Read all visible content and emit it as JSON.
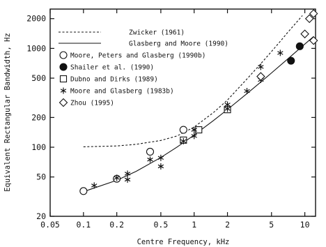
{
  "chart_data": {
    "type": "scatter",
    "title": "",
    "xlabel": "Centre Frequency, kHz",
    "ylabel": "Equivalent Rectangular Bandwidth, Hz",
    "x_scale": "log",
    "y_scale": "log",
    "xlim": [
      0.05,
      12.5
    ],
    "ylim": [
      20,
      2500
    ],
    "x_ticks": [
      {
        "value": 0.05,
        "label": "0.05"
      },
      {
        "value": 0.1,
        "label": "0.1"
      },
      {
        "value": 0.2,
        "label": "0.2"
      },
      {
        "value": 0.5,
        "label": "0.5"
      },
      {
        "value": 1,
        "label": "1"
      },
      {
        "value": 2,
        "label": "2"
      },
      {
        "value": 5,
        "label": "5"
      },
      {
        "value": 10,
        "label": "10"
      }
    ],
    "y_ticks": [
      {
        "value": 20,
        "label": "20"
      },
      {
        "value": 50,
        "label": "50"
      },
      {
        "value": 100,
        "label": "100"
      },
      {
        "value": 200,
        "label": "200"
      },
      {
        "value": 500,
        "label": "500"
      },
      {
        "value": 1000,
        "label": "1000"
      },
      {
        "value": 2000,
        "label": "2000"
      }
    ],
    "grid": false,
    "legend_position": "top-left",
    "lines": [
      {
        "name": "Zwicker (1961)",
        "style": "dashed",
        "x": [
          0.1,
          0.2,
          0.3,
          0.5,
          0.7,
          1.0,
          1.5,
          2.0,
          3.0,
          4.0,
          5.0,
          6.0,
          7.0,
          8.0,
          9.5
        ],
        "y": [
          101,
          103,
          107,
          117,
          130,
          160,
          225,
          300,
          490,
          700,
          930,
          1180,
          1450,
          1720,
          2150
        ]
      },
      {
        "name": "Glasberg and Moore (1990)",
        "style": "solid",
        "x": [
          0.1,
          0.2,
          0.3,
          0.5,
          0.7,
          1.0,
          1.5,
          2.0,
          3.0,
          4.0,
          5.0,
          7.0,
          10.0,
          12.0
        ],
        "y": [
          35.5,
          46.3,
          57.1,
          78.7,
          100.3,
          132.7,
          186.7,
          240.7,
          348.7,
          456.7,
          564.7,
          780.7,
          1104.7,
          1320.7
        ]
      }
    ],
    "series": [
      {
        "name": "Moore, Peters and Glasberg (1990b)",
        "marker": "circle-open",
        "x": [
          0.1,
          0.2,
          0.4,
          0.8
        ],
        "y": [
          36,
          48,
          90,
          150
        ]
      },
      {
        "name": "Shailer et al. (1990)",
        "marker": "circle-filled",
        "x": [
          7.5,
          9.0
        ],
        "y": [
          750,
          1050
        ]
      },
      {
        "name": "Dubno and Dirks (1989)",
        "marker": "square-open",
        "x": [
          0.8,
          1.1,
          2.0
        ],
        "y": [
          118,
          150,
          240
        ]
      },
      {
        "name": "Moore and Glasberg (1983b)",
        "marker": "asterisk",
        "x": [
          0.125,
          0.2,
          0.25,
          0.25,
          0.4,
          0.5,
          0.5,
          0.8,
          1.0,
          1.0,
          2.0,
          2.0,
          3.0,
          4.0,
          4.0,
          6.0
        ],
        "y": [
          41,
          49,
          54,
          47,
          75,
          78,
          64,
          115,
          150,
          130,
          270,
          245,
          370,
          650,
          480,
          900
        ]
      },
      {
        "name": "Zhou (1995)",
        "marker": "diamond-open",
        "x": [
          4.0,
          10.0,
          11.0,
          12.0,
          12.0
        ],
        "y": [
          520,
          1400,
          2000,
          2250,
          1200
        ]
      }
    ]
  }
}
